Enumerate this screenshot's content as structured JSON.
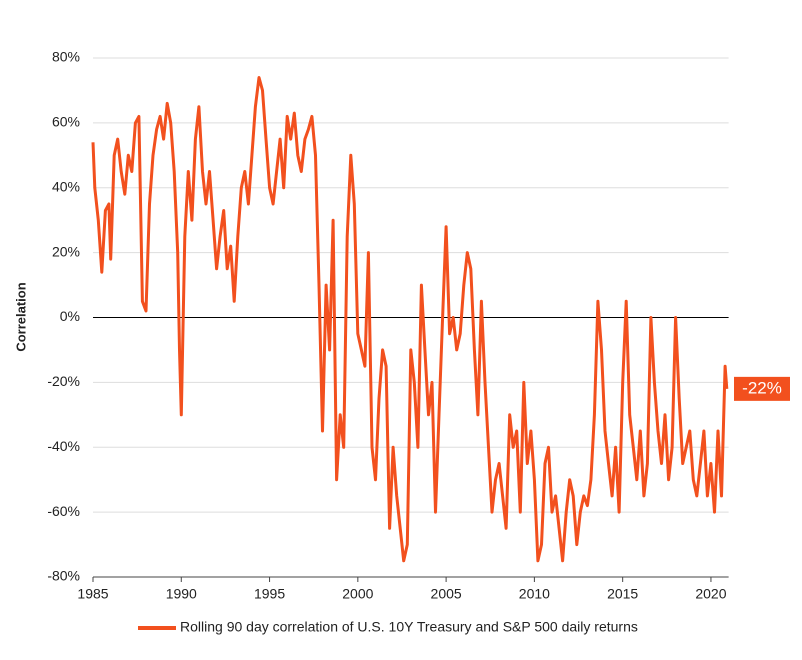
{
  "chart_data": {
    "type": "line",
    "y_label": "Correlation",
    "xlim": [
      1985,
      2021
    ],
    "xticks": [
      1985,
      1990,
      1995,
      2000,
      2005,
      2010,
      2015,
      2020
    ],
    "ylim": [
      -80,
      80
    ],
    "yticks": [
      {
        "value": -80,
        "label": "-80%"
      },
      {
        "value": -60,
        "label": "-60%"
      },
      {
        "value": -40,
        "label": "-40%"
      },
      {
        "value": -20,
        "label": "-20%"
      },
      {
        "value": 0,
        "label": "0%"
      },
      {
        "value": 20,
        "label": "20%"
      },
      {
        "value": 40,
        "label": "40%"
      },
      {
        "value": 60,
        "label": "60%"
      },
      {
        "value": 80,
        "label": "80%"
      }
    ],
    "grid": true,
    "legend": "bottom",
    "end_label": {
      "value": -22,
      "label": "-22%"
    },
    "x": [
      1985.0,
      1985.1,
      1985.3,
      1985.5,
      1985.7,
      1985.9,
      1986.0,
      1986.2,
      1986.4,
      1986.6,
      1986.8,
      1987.0,
      1987.2,
      1987.4,
      1987.6,
      1987.8,
      1988.0,
      1988.2,
      1988.4,
      1988.6,
      1988.8,
      1989.0,
      1989.2,
      1989.4,
      1989.6,
      1989.8,
      1989.9,
      1990.0,
      1990.2,
      1990.4,
      1990.6,
      1990.8,
      1991.0,
      1991.2,
      1991.4,
      1991.6,
      1991.8,
      1992.0,
      1992.2,
      1992.4,
      1992.6,
      1992.8,
      1993.0,
      1993.2,
      1993.4,
      1993.6,
      1993.8,
      1994.0,
      1994.2,
      1994.4,
      1994.6,
      1994.8,
      1995.0,
      1995.2,
      1995.4,
      1995.6,
      1995.8,
      1996.0,
      1996.2,
      1996.4,
      1996.6,
      1996.8,
      1997.0,
      1997.2,
      1997.4,
      1997.6,
      1997.8,
      1998.0,
      1998.2,
      1998.4,
      1998.6,
      1998.8,
      1999.0,
      1999.2,
      1999.4,
      1999.6,
      1999.8,
      2000.0,
      2000.2,
      2000.4,
      2000.6,
      2000.8,
      2001.0,
      2001.2,
      2001.4,
      2001.6,
      2001.8,
      2002.0,
      2002.2,
      2002.4,
      2002.6,
      2002.8,
      2003.0,
      2003.2,
      2003.4,
      2003.6,
      2003.8,
      2004.0,
      2004.2,
      2004.4,
      2004.6,
      2004.8,
      2005.0,
      2005.2,
      2005.4,
      2005.6,
      2005.8,
      2006.0,
      2006.2,
      2006.4,
      2006.6,
      2006.8,
      2007.0,
      2007.2,
      2007.4,
      2007.6,
      2007.8,
      2008.0,
      2008.2,
      2008.4,
      2008.6,
      2008.8,
      2009.0,
      2009.2,
      2009.4,
      2009.6,
      2009.8,
      2010.0,
      2010.2,
      2010.4,
      2010.6,
      2010.8,
      2011.0,
      2011.2,
      2011.4,
      2011.6,
      2011.8,
      2012.0,
      2012.2,
      2012.4,
      2012.6,
      2012.8,
      2013.0,
      2013.2,
      2013.4,
      2013.6,
      2013.8,
      2014.0,
      2014.2,
      2014.4,
      2014.6,
      2014.8,
      2015.0,
      2015.2,
      2015.4,
      2015.6,
      2015.8,
      2016.0,
      2016.2,
      2016.4,
      2016.6,
      2016.8,
      2017.0,
      2017.2,
      2017.4,
      2017.6,
      2017.8,
      2018.0,
      2018.2,
      2018.4,
      2018.6,
      2018.8,
      2019.0,
      2019.2,
      2019.4,
      2019.6,
      2019.8,
      2020.0,
      2020.2,
      2020.4,
      2020.6,
      2020.8,
      2020.9
    ],
    "series": [
      {
        "name": "Rolling 90 day correlation of U.S. 10Y Treasury and S&P 500 daily returns",
        "color": "#f2501e",
        "values": [
          54,
          40,
          30,
          14,
          33,
          35,
          18,
          50,
          55,
          45,
          38,
          50,
          45,
          60,
          62,
          5,
          2,
          35,
          50,
          58,
          62,
          55,
          66,
          60,
          45,
          20,
          -10,
          -30,
          25,
          45,
          30,
          55,
          65,
          45,
          35,
          45,
          30,
          15,
          25,
          33,
          15,
          22,
          5,
          25,
          40,
          45,
          35,
          50,
          65,
          74,
          70,
          55,
          40,
          35,
          45,
          55,
          40,
          62,
          55,
          63,
          50,
          45,
          55,
          58,
          62,
          50,
          10,
          -35,
          10,
          -10,
          30,
          -50,
          -30,
          -40,
          25,
          50,
          35,
          -5,
          -10,
          -15,
          20,
          -40,
          -50,
          -25,
          -10,
          -15,
          -65,
          -40,
          -55,
          -65,
          -75,
          -70,
          -10,
          -20,
          -40,
          10,
          -10,
          -30,
          -20,
          -60,
          -30,
          0,
          28,
          -5,
          0,
          -10,
          -5,
          10,
          20,
          15,
          -10,
          -30,
          5,
          -20,
          -40,
          -60,
          -50,
          -45,
          -55,
          -65,
          -30,
          -40,
          -35,
          -60,
          -20,
          -45,
          -35,
          -50,
          -75,
          -70,
          -45,
          -40,
          -60,
          -55,
          -65,
          -75,
          -60,
          -50,
          -55,
          -70,
          -60,
          -55,
          -58,
          -50,
          -30,
          5,
          -10,
          -35,
          -45,
          -55,
          -40,
          -60,
          -20,
          5,
          -30,
          -40,
          -50,
          -35,
          -55,
          -45,
          0,
          -20,
          -35,
          -45,
          -30,
          -50,
          -40,
          0,
          -25,
          -45,
          -40,
          -35,
          -50,
          -55,
          -45,
          -35,
          -55,
          -45,
          -60,
          -35,
          -55,
          -15,
          -22
        ]
      }
    ]
  }
}
